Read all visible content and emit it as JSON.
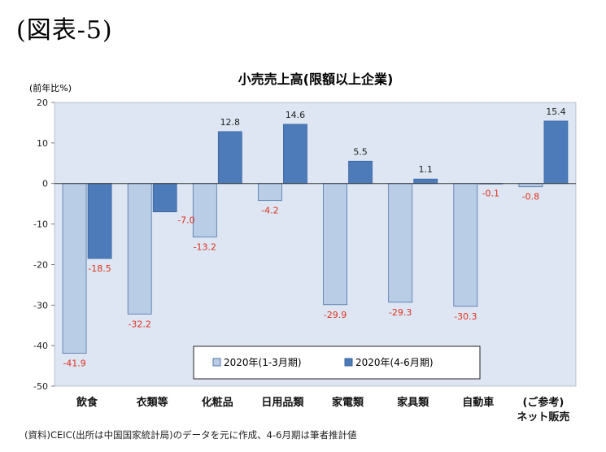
{
  "figure_label": "(図表-5)",
  "source_note": "(資料)CEIC(出所は中国国家統計局)のデータを元に作成、4-6月期は筆者推計値",
  "colors": {
    "plot_bg": "#dde6f2",
    "series1_fill": "#b9cde6",
    "series1_stroke": "#4f74a8",
    "series2_fill": "#4d7bba",
    "series2_stroke": "#3a64a0",
    "neg_label": "#e0301e",
    "pos_label": "#222222"
  },
  "chart_data": {
    "type": "bar",
    "title": "小売売上高(限額以上企業)",
    "ylabel": "(前年比%)",
    "xlabel": "",
    "ylim": [
      -50,
      20
    ],
    "yticks": [
      20,
      10,
      0,
      -10,
      -20,
      -30,
      -40,
      -50
    ],
    "categories": [
      "飲食",
      "衣類等",
      "化粧品",
      "日用品類",
      "家電類",
      "家具類",
      "自動車",
      "(ご参考)ネット販売"
    ],
    "category_lines": [
      [
        "飲食"
      ],
      [
        "衣類等"
      ],
      [
        "化粧品"
      ],
      [
        "日用品類"
      ],
      [
        "家電類"
      ],
      [
        "家具類"
      ],
      [
        "自動車"
      ],
      [
        "(ご参考)",
        "ネット販売"
      ]
    ],
    "series": [
      {
        "name": "2020年(1-3月期)",
        "values": [
          -41.9,
          -32.2,
          -13.2,
          -4.2,
          -29.9,
          -29.3,
          -30.3,
          -0.8
        ],
        "labels": [
          "-41.9",
          "-32.2",
          "-13.2",
          "-4.2",
          "-29.9",
          "-29.3",
          "-30.3",
          "-0.8"
        ]
      },
      {
        "name": "2020年(4-6月期)",
        "values": [
          -18.5,
          -7.0,
          12.8,
          14.6,
          5.5,
          1.1,
          -0.1,
          15.4
        ],
        "labels": [
          "-18.5",
          "-7.0",
          "12.8",
          "14.6",
          "5.5",
          "1.1",
          "-0.1",
          "15.4"
        ]
      }
    ],
    "grid": false,
    "legend": "bottom-right"
  }
}
